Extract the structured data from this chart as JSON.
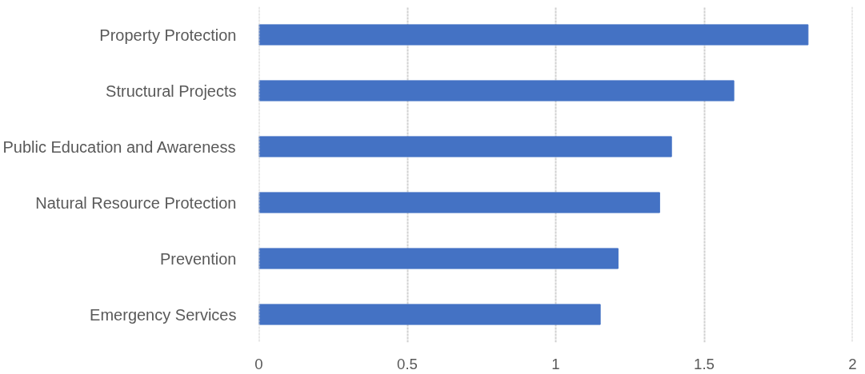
{
  "chart_data": {
    "type": "bar",
    "orientation": "horizontal",
    "categories": [
      "Property Protection",
      "Structural Projects",
      "Public Education and Awareness",
      "Natural Resource Protection",
      "Prevention",
      "Emergency Services"
    ],
    "values": [
      1.85,
      1.6,
      1.39,
      1.35,
      1.21,
      1.15
    ],
    "color": "#4472c4",
    "xlim": [
      0,
      2
    ],
    "xticks": [
      0,
      0.5,
      1,
      1.5,
      2
    ],
    "grid": "x"
  }
}
